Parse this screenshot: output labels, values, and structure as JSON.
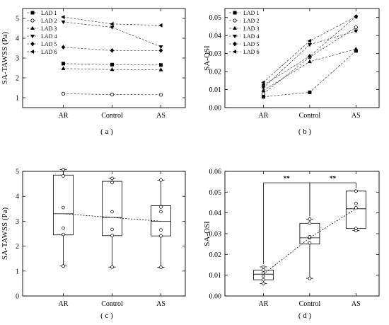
{
  "chart_data": [
    {
      "panel": "a",
      "type": "line",
      "panel_label": "( a )",
      "ylabel": "SA-TAWSS (Pa)",
      "categories": [
        "AR",
        "Control",
        "AS"
      ],
      "ylim": [
        0.5,
        5.5
      ],
      "yticks": [
        1,
        2,
        3,
        4,
        5
      ],
      "legend_position": "top-left",
      "series": [
        {
          "name": "LAD 1",
          "marker": "square",
          "values": [
            2.72,
            2.67,
            2.65
          ]
        },
        {
          "name": "LAD 2",
          "marker": "circle",
          "values": [
            1.2,
            1.16,
            1.15
          ]
        },
        {
          "name": "LAD 3",
          "marker": "triangle-up",
          "values": [
            2.47,
            2.42,
            2.41
          ]
        },
        {
          "name": "LAD 4",
          "marker": "triangle-down",
          "values": [
            4.82,
            4.55,
            3.57
          ]
        },
        {
          "name": "LAD 5",
          "marker": "diamond",
          "values": [
            3.55,
            3.38,
            3.38
          ]
        },
        {
          "name": "LAD 6",
          "marker": "triangle-left",
          "values": [
            5.07,
            4.72,
            4.65
          ]
        }
      ]
    },
    {
      "panel": "b",
      "type": "line",
      "panel_label": "( b )",
      "ylabel": "SA-OSI",
      "categories": [
        "AR",
        "Control",
        "AS"
      ],
      "ylim": [
        0.0,
        0.055
      ],
      "yticks": [
        0.0,
        0.01,
        0.02,
        0.03,
        0.04,
        0.05
      ],
      "yticklabels": [
        "0.00",
        "0.01",
        "0.02",
        "0.03",
        "0.04",
        "0.05"
      ],
      "legend_position": "top-left",
      "series": [
        {
          "name": "LAD 1",
          "marker": "square",
          "values": [
            0.006,
            0.0085,
            0.0315
          ]
        },
        {
          "name": "LAD 2",
          "marker": "circle",
          "values": [
            0.0078,
            0.028,
            0.0445
          ]
        },
        {
          "name": "LAD 3",
          "marker": "triangle-up",
          "values": [
            0.0095,
            0.0255,
            0.0325
          ]
        },
        {
          "name": "LAD 4",
          "marker": "triangle-down",
          "values": [
            0.011,
            0.035,
            0.0425
          ]
        },
        {
          "name": "LAD 5",
          "marker": "diamond",
          "values": [
            0.0125,
            0.0285,
            0.0505
          ]
        },
        {
          "name": "LAD 6",
          "marker": "triangle-left",
          "values": [
            0.014,
            0.037,
            0.0505
          ]
        }
      ]
    },
    {
      "panel": "c",
      "type": "box",
      "panel_label": "( c )",
      "ylabel": "SA-TAWSS (Pa)",
      "categories": [
        "AR",
        "Control",
        "AS"
      ],
      "ylim": [
        0,
        5
      ],
      "yticks": [
        0,
        1,
        2,
        3,
        4,
        5
      ],
      "boxes": [
        {
          "min": 1.2,
          "q1": 2.45,
          "median": 3.3,
          "q3": 4.85,
          "max": 5.07
        },
        {
          "min": 1.16,
          "q1": 2.42,
          "median": 3.15,
          "q3": 4.6,
          "max": 4.72
        },
        {
          "min": 1.15,
          "q1": 2.41,
          "median": 3.0,
          "q3": 3.62,
          "max": 4.65
        }
      ],
      "points": [
        [
          1.2,
          2.47,
          2.72,
          3.55,
          4.82,
          5.07
        ],
        [
          1.16,
          2.42,
          2.67,
          3.38,
          4.55,
          4.72
        ],
        [
          1.15,
          2.41,
          2.65,
          3.38,
          3.57,
          4.65
        ]
      ],
      "trend": [
        3.3,
        3.15,
        3.0
      ]
    },
    {
      "panel": "d",
      "type": "box",
      "panel_label": "( d )",
      "ylabel": "SA-OSI",
      "categories": [
        "AR",
        "Control",
        "AS"
      ],
      "ylim": [
        0.0,
        0.06
      ],
      "yticks": [
        0.0,
        0.01,
        0.02,
        0.03,
        0.04,
        0.05,
        0.06
      ],
      "yticklabels": [
        "0.00",
        "0.01",
        "0.02",
        "0.03",
        "0.04",
        "0.05",
        "0.06"
      ],
      "boxes": [
        {
          "min": 0.006,
          "q1": 0.0078,
          "median": 0.0105,
          "q3": 0.0125,
          "max": 0.014
        },
        {
          "min": 0.0085,
          "q1": 0.025,
          "median": 0.028,
          "q3": 0.035,
          "max": 0.037
        },
        {
          "min": 0.0315,
          "q1": 0.0325,
          "median": 0.042,
          "q3": 0.0505,
          "max": 0.0505
        }
      ],
      "points": [
        [
          0.006,
          0.0078,
          0.0095,
          0.011,
          0.0125,
          0.014
        ],
        [
          0.0085,
          0.0255,
          0.028,
          0.0285,
          0.035,
          0.037
        ],
        [
          0.0315,
          0.0325,
          0.0425,
          0.0445,
          0.0505,
          0.0505
        ]
      ],
      "trend": [
        0.0105,
        0.028,
        0.042
      ],
      "significance": [
        {
          "from": "AR",
          "to": "Control",
          "label": "**",
          "level": 0.0545
        },
        {
          "from": "Control",
          "to": "AS",
          "label": "**",
          "level": 0.0545
        }
      ]
    }
  ]
}
